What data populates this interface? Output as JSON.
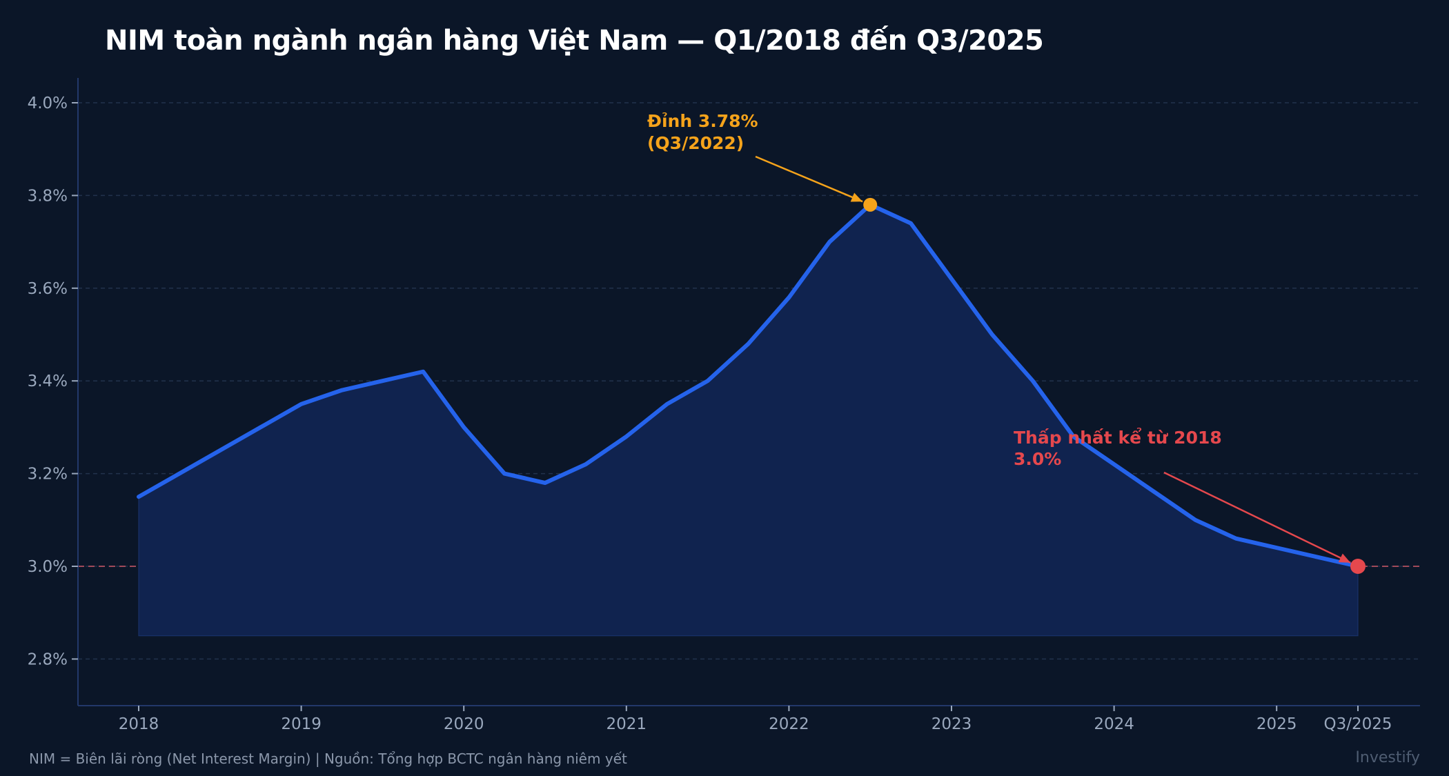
{
  "title": "NIM toàn ngành ngân hàng Việt Nam — Q1/2018 đến Q3/2025",
  "footer": {
    "note": "NIM = Biên lãi ròng (Net Interest Margin)  |  Nguồn: Tổng hợp BCTC ngân hàng niêm yết",
    "brand": "Investify"
  },
  "colors": {
    "background": "#0b1628",
    "line": "#2563eb",
    "fill": "#10234f",
    "grid": "#22324c",
    "axis": "#22386a",
    "peak": "#f5a31b",
    "low": "#e5484d"
  },
  "chart_data": {
    "type": "area",
    "title": "NIM toàn ngành ngân hàng Việt Nam — Q1/2018 đến Q3/2025",
    "xlabel": "",
    "ylabel": "",
    "ylim": [
      2.7,
      4.05
    ],
    "grid": true,
    "fill_baseline": 2.85,
    "x": [
      "Q1/2018",
      "Q2/2018",
      "Q3/2018",
      "Q4/2018",
      "Q1/2019",
      "Q2/2019",
      "Q3/2019",
      "Q4/2019",
      "Q1/2020",
      "Q2/2020",
      "Q3/2020",
      "Q4/2020",
      "Q1/2021",
      "Q2/2021",
      "Q3/2021",
      "Q4/2021",
      "Q1/2022",
      "Q2/2022",
      "Q3/2022",
      "Q4/2022",
      "Q1/2023",
      "Q2/2023",
      "Q3/2023",
      "Q4/2023",
      "Q1/2024",
      "Q2/2024",
      "Q3/2024",
      "Q4/2024",
      "Q1/2025",
      "Q2/2025",
      "Q3/2025"
    ],
    "series": [
      {
        "name": "NIM (%)",
        "values": [
          3.15,
          3.2,
          3.25,
          3.3,
          3.35,
          3.38,
          3.4,
          3.42,
          3.3,
          3.2,
          3.18,
          3.22,
          3.28,
          3.35,
          3.4,
          3.48,
          3.58,
          3.7,
          3.78,
          3.74,
          3.62,
          3.5,
          3.4,
          3.28,
          3.22,
          3.16,
          3.1,
          3.06,
          3.04,
          3.02,
          3.0
        ]
      }
    ],
    "y_ticks": [
      {
        "value": 2.8,
        "label": "2.8%"
      },
      {
        "value": 3.0,
        "label": "3.0%"
      },
      {
        "value": 3.2,
        "label": "3.2%"
      },
      {
        "value": 3.4,
        "label": "3.4%"
      },
      {
        "value": 3.6,
        "label": "3.6%"
      },
      {
        "value": 3.8,
        "label": "3.8%"
      },
      {
        "value": 4.0,
        "label": "4.0%"
      }
    ],
    "x_ticks": [
      {
        "index": 0,
        "label": "2018"
      },
      {
        "index": 4,
        "label": "2019"
      },
      {
        "index": 8,
        "label": "2020"
      },
      {
        "index": 12,
        "label": "2021"
      },
      {
        "index": 16,
        "label": "2022"
      },
      {
        "index": 20,
        "label": "2023"
      },
      {
        "index": 24,
        "label": "2024"
      },
      {
        "index": 28,
        "label": "2025"
      },
      {
        "index": 30,
        "label": "Q3/2025"
      }
    ],
    "reference_line": {
      "value": 3.0,
      "style": "dashed",
      "color": "#e5484d"
    },
    "annotations": [
      {
        "type": "peak",
        "index": 18,
        "value": 3.78,
        "line1": "Đỉnh 3.78%",
        "line2": "(Q3/2022)",
        "color": "#f5a31b"
      },
      {
        "type": "low",
        "index": 30,
        "value": 3.0,
        "line1": "Thấp nhất kể từ 2018",
        "line2": "3.0%",
        "color": "#e5484d"
      }
    ]
  }
}
